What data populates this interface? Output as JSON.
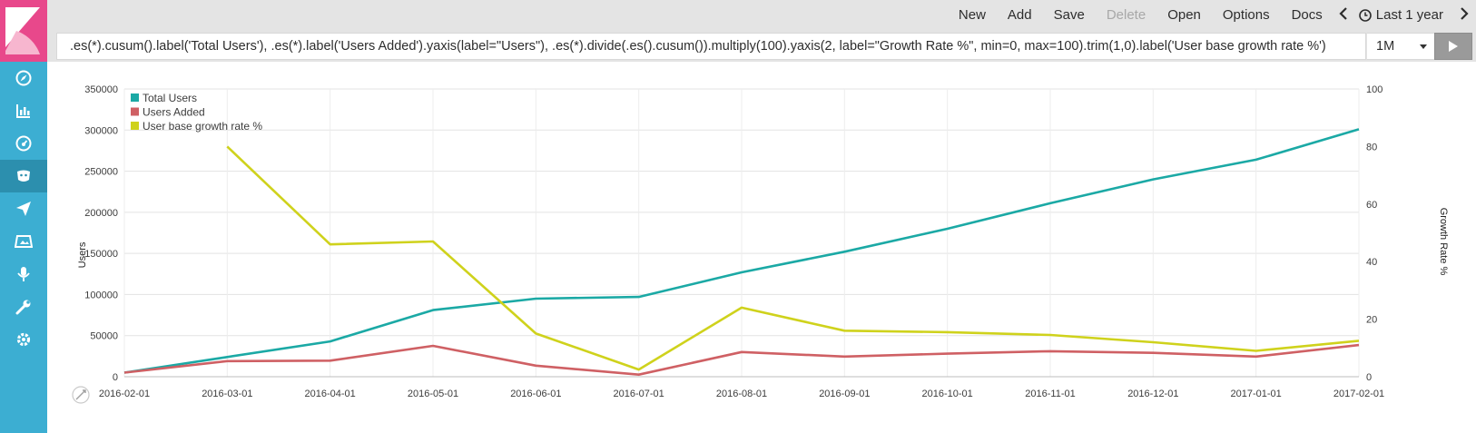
{
  "sidebar": {
    "logo": "kibana-logo",
    "items": [
      {
        "name": "discover-icon",
        "active": false
      },
      {
        "name": "visualize-icon",
        "active": false
      },
      {
        "name": "dashboard-icon",
        "active": false
      },
      {
        "name": "timelion-icon",
        "active": true
      },
      {
        "name": "apm-icon",
        "active": false
      },
      {
        "name": "canvas-icon",
        "active": false
      },
      {
        "name": "voice-icon",
        "active": false
      },
      {
        "name": "dev-tools-icon",
        "active": false
      },
      {
        "name": "management-icon",
        "active": false
      }
    ]
  },
  "toolbar": {
    "new_label": "New",
    "add_label": "Add",
    "save_label": "Save",
    "delete_label": "Delete",
    "open_label": "Open",
    "options_label": "Options",
    "docs_label": "Docs",
    "time_label": "Last 1 year"
  },
  "query": {
    "expression": ".es(*).cusum().label('Total Users'), .es(*).label('Users Added').yaxis(label=\"Users\"), .es(*).divide(.es().cusum()).multiply(100).yaxis(2, label=\"Growth Rate %\", min=0, max=100).trim(1,0).label('User base growth rate %')",
    "interval": "1M"
  },
  "colors": {
    "total_users": "#1ba9a5",
    "users_added": "#cf6064",
    "growth_rate": "#cfd21c",
    "sidebar": "#3caed2",
    "logo": "#e8488b"
  },
  "chart_data": {
    "type": "line",
    "x": [
      "2016-02-01",
      "2016-03-01",
      "2016-04-01",
      "2016-05-01",
      "2016-06-01",
      "2016-07-01",
      "2016-08-01",
      "2016-09-01",
      "2016-10-01",
      "2016-11-01",
      "2016-12-01",
      "2017-01-01",
      "2017-02-01"
    ],
    "y_left": {
      "label": "Users",
      "ticks": [
        "0",
        "50000",
        "100000",
        "150000",
        "200000",
        "250000",
        "300000",
        "350000"
      ],
      "range": [
        0,
        350000
      ]
    },
    "y_right": {
      "label": "Growth Rate %",
      "ticks": [
        "0",
        "20",
        "40",
        "60",
        "80",
        "100"
      ],
      "range": [
        0,
        100
      ]
    },
    "legend_position": "top-left",
    "series": [
      {
        "name": "Total Users",
        "axis": "left",
        "color": "#1ba9a5",
        "values": [
          5000,
          24000,
          43000,
          81000,
          95000,
          97000,
          127000,
          152000,
          180000,
          211000,
          240000,
          264000,
          301000
        ]
      },
      {
        "name": "Users Added",
        "axis": "left",
        "color": "#cf6064",
        "values": [
          5000,
          19000,
          19500,
          37500,
          13500,
          2500,
          30000,
          24500,
          28000,
          31000,
          29000,
          24500,
          38500
        ]
      },
      {
        "name": "User base growth rate %",
        "axis": "right",
        "color": "#cfd21c",
        "values": [
          null,
          80,
          46,
          47,
          15,
          2.5,
          24,
          16,
          15.5,
          14.5,
          12,
          9,
          12.5
        ]
      }
    ]
  }
}
